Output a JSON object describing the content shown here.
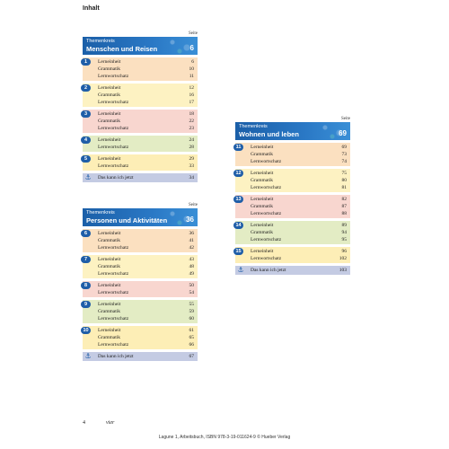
{
  "header": {
    "title": "Inhalt"
  },
  "seite_label": "Seite",
  "kann_label": "Das kann ich jetzt",
  "themes": [
    {
      "kicker": "Themenkreis",
      "title": "Menschen und Reisen",
      "page": "6",
      "lessons": [
        {
          "num": "1",
          "color": "c-orange",
          "rows": [
            {
              "label": "Lerneinheit",
              "page": "6"
            },
            {
              "label": "Grammatik",
              "page": "10"
            },
            {
              "label": "Lernwortschatz",
              "page": "11"
            }
          ]
        },
        {
          "num": "2",
          "color": "c-yellow",
          "rows": [
            {
              "label": "Lerneinheit",
              "page": "12"
            },
            {
              "label": "Grammatik",
              "page": "16"
            },
            {
              "label": "Lernwortschatz",
              "page": "17"
            }
          ]
        },
        {
          "num": "3",
          "color": "c-pink",
          "rows": [
            {
              "label": "Lerneinheit",
              "page": "18"
            },
            {
              "label": "Grammatik",
              "page": "22"
            },
            {
              "label": "Lernwortschatz",
              "page": "23"
            }
          ]
        },
        {
          "num": "4",
          "color": "c-green",
          "rows": [
            {
              "label": "Lerneinheit",
              "page": "24"
            },
            {
              "label": "Lernwortschatz",
              "page": "28"
            }
          ]
        },
        {
          "num": "5",
          "color": "c-lemon",
          "rows": [
            {
              "label": "Lerneinheit",
              "page": "29"
            },
            {
              "label": "Lernwortschatz",
              "page": "33"
            }
          ]
        }
      ],
      "kann_page": "34"
    },
    {
      "kicker": "Themenkreis",
      "title": "Personen und Aktivitäten",
      "page": "36",
      "lessons": [
        {
          "num": "6",
          "color": "c-orange",
          "rows": [
            {
              "label": "Lerneinheit",
              "page": "36"
            },
            {
              "label": "Grammatik",
              "page": "41"
            },
            {
              "label": "Lernwortschatz",
              "page": "42"
            }
          ]
        },
        {
          "num": "7",
          "color": "c-yellow",
          "rows": [
            {
              "label": "Lerneinheit",
              "page": "43"
            },
            {
              "label": "Grammatik",
              "page": "48"
            },
            {
              "label": "Lernwortschatz",
              "page": "49"
            }
          ]
        },
        {
          "num": "8",
          "color": "c-pink",
          "rows": [
            {
              "label": "Lerneinheit",
              "page": "50"
            },
            {
              "label": "Lernwortschatz",
              "page": "54"
            }
          ]
        },
        {
          "num": "9",
          "color": "c-green",
          "rows": [
            {
              "label": "Lerneinheit",
              "page": "55"
            },
            {
              "label": "Grammatik",
              "page": "59"
            },
            {
              "label": "Lernwortschatz",
              "page": "60"
            }
          ]
        },
        {
          "num": "10",
          "color": "c-lemon",
          "rows": [
            {
              "label": "Lerneinheit",
              "page": "61"
            },
            {
              "label": "Grammatik",
              "page": "65"
            },
            {
              "label": "Lernwortschatz",
              "page": "66"
            }
          ]
        }
      ],
      "kann_page": "67"
    },
    {
      "kicker": "Themenkreis",
      "title": "Wohnen und leben",
      "page": "69",
      "lessons": [
        {
          "num": "11",
          "color": "c-orange",
          "rows": [
            {
              "label": "Lerneinheit",
              "page": "69"
            },
            {
              "label": "Grammatik",
              "page": "73"
            },
            {
              "label": "Lernwortschatz",
              "page": "74"
            }
          ]
        },
        {
          "num": "12",
          "color": "c-yellow",
          "rows": [
            {
              "label": "Lerneinheit",
              "page": "75"
            },
            {
              "label": "Grammatik",
              "page": "80"
            },
            {
              "label": "Lernwortschatz",
              "page": "81"
            }
          ]
        },
        {
          "num": "13",
          "color": "c-pink",
          "rows": [
            {
              "label": "Lerneinheit",
              "page": "82"
            },
            {
              "label": "Grammatik",
              "page": "87"
            },
            {
              "label": "Lernwortschatz",
              "page": "88"
            }
          ]
        },
        {
          "num": "14",
          "color": "c-green",
          "rows": [
            {
              "label": "Lerneinheit",
              "page": "89"
            },
            {
              "label": "Grammatik",
              "page": "94"
            },
            {
              "label": "Lernwortschatz",
              "page": "95"
            }
          ]
        },
        {
          "num": "15",
          "color": "c-lemon",
          "rows": [
            {
              "label": "Lerneinheit",
              "page": "96"
            },
            {
              "label": "Lernwortschatz",
              "page": "102"
            }
          ]
        }
      ],
      "kann_page": "103"
    }
  ],
  "footer": {
    "page_number": "4",
    "page_word": "vier",
    "credit": "Lagune 1, Arbeitsbuch, ISBN 978-3-19-011624-9 © Hueber Verlag"
  }
}
